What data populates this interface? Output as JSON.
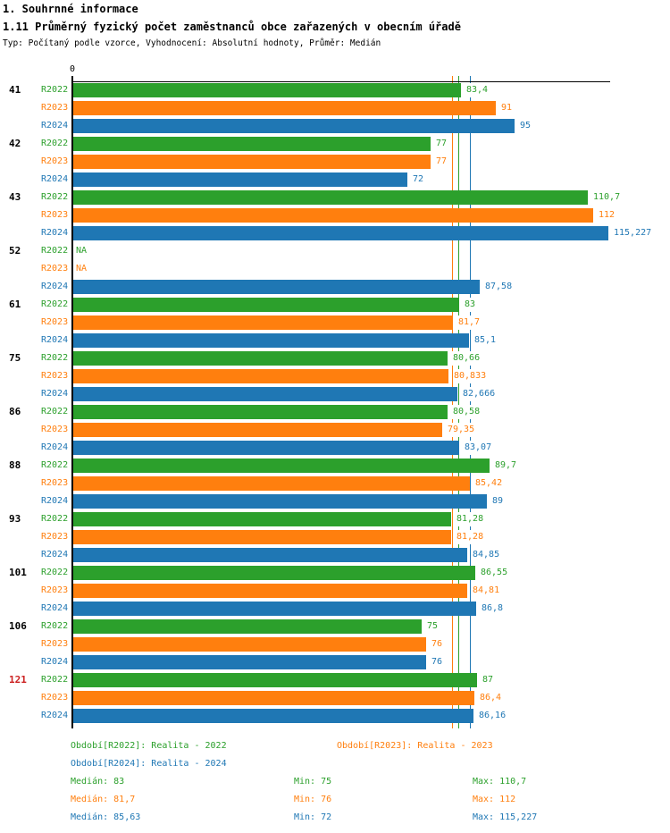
{
  "header": {
    "title1": "1. Souhrnné informace",
    "title2": "1.11 Průměrný fyzický počet zaměstnanců obce zařazených v obecním úřadě",
    "subtitle": "Typ: Počítaný podle vzorce, Vyhodnocení: Absolutní hodnoty, Průměr: Medián"
  },
  "axis": {
    "zero_label": "0"
  },
  "colors": {
    "r2022": "#2ca02c",
    "r2023": "#ff7f0e",
    "r2024": "#1f77b4",
    "highlight": "#cc2222",
    "axis": "#000000",
    "background": "#ffffff"
  },
  "chart_data": {
    "type": "bar",
    "orientation": "horizontal",
    "title": "1.11 Průměrný fyzický počet zaměstnanců obce zařazených v obecním úřadě",
    "xlim": [
      0,
      116
    ],
    "grid": false,
    "legend_position": "bottom",
    "categories": [
      "41",
      "42",
      "43",
      "52",
      "61",
      "75",
      "86",
      "88",
      "93",
      "101",
      "106",
      "121"
    ],
    "highlighted_category": "121",
    "median_reference_lines": true,
    "series": [
      {
        "name": "R2022",
        "color": "#2ca02c",
        "period_label": "Období[R2022]: Realita - 2022",
        "values": [
          83.4,
          77,
          110.7,
          null,
          83,
          80.66,
          80.58,
          89.7,
          81.28,
          86.55,
          75,
          87
        ],
        "labels": [
          "83,4",
          "77",
          "110,7",
          "NA",
          "83",
          "80,66",
          "80,58",
          "89,7",
          "81,28",
          "86,55",
          "75",
          "87"
        ],
        "median": 83,
        "min": 75,
        "max": 110.7,
        "median_label": "Medián: 83",
        "min_label": "Min: 75",
        "max_label": "Max: 110,7"
      },
      {
        "name": "R2023",
        "color": "#ff7f0e",
        "period_label": "Období[R2023]: Realita - 2023",
        "values": [
          91,
          77,
          112,
          null,
          81.7,
          80.833,
          79.35,
          85.42,
          81.28,
          84.81,
          76,
          86.4
        ],
        "labels": [
          "91",
          "77",
          "112",
          "NA",
          "81,7",
          "80,833",
          "79,35",
          "85,42",
          "81,28",
          "84,81",
          "76",
          "86,4"
        ],
        "median": 81.7,
        "min": 76,
        "max": 112,
        "median_label": "Medián: 81,7",
        "min_label": "Min: 76",
        "max_label": "Max: 112"
      },
      {
        "name": "R2024",
        "color": "#1f77b4",
        "period_label": "Období[R2024]: Realita - 2024",
        "values": [
          95,
          72,
          115.227,
          87.58,
          85.1,
          82.666,
          83.07,
          89,
          84.85,
          86.8,
          76,
          86.16
        ],
        "labels": [
          "95",
          "72",
          "115,227",
          "87,58",
          "85,1",
          "82,666",
          "83,07",
          "89",
          "84,85",
          "86,8",
          "76",
          "86,16"
        ],
        "median": 85.63,
        "min": 72,
        "max": 115.227,
        "median_label": "Medián: 85,63",
        "min_label": "Min: 72",
        "max_label": "Max: 115,227"
      }
    ]
  }
}
